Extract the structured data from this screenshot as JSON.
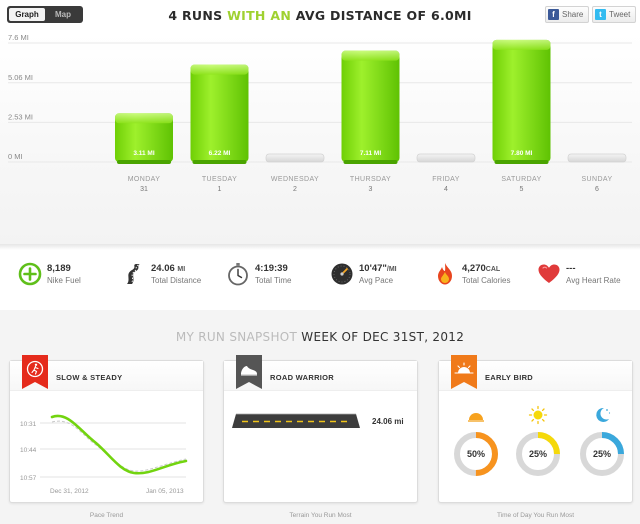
{
  "header": {
    "toggle": {
      "graph": "Graph",
      "map": "Map"
    },
    "headline": {
      "p1": "4 RUNS ",
      "p2": "WITH AN ",
      "p3": "AVG DISTANCE OF 6.0MI"
    },
    "share": {
      "facebook": "Share",
      "twitter": "Tweet"
    }
  },
  "chart_data": {
    "type": "bar",
    "categories": [
      "MONDAY",
      "TUESDAY",
      "WEDNESDAY",
      "THURSDAY",
      "FRIDAY",
      "SATURDAY",
      "SUNDAY"
    ],
    "dates": [
      "31",
      "1",
      "2",
      "3",
      "4",
      "5",
      "6"
    ],
    "values": [
      3.11,
      6.22,
      0,
      7.11,
      0,
      7.8,
      0
    ],
    "value_labels": [
      "3.11 MI",
      "6.22 MI",
      "",
      "7.11 MI",
      "",
      "7.80 MI",
      ""
    ],
    "yticks": [
      0,
      2.53,
      5.06,
      7.6
    ],
    "ytick_labels": [
      "0 MI",
      "2.53 MI",
      "5.06 MI",
      "7.6 MI"
    ],
    "ylim": [
      0,
      7.6
    ],
    "colors": {
      "bar": "#7bd80a",
      "bar_light": "#a9f13b",
      "empty": "#e4e4e4"
    }
  },
  "stats": [
    {
      "value": "8,189",
      "unit": "",
      "label": "Nike Fuel",
      "icon": "fuel-icon"
    },
    {
      "value": "24.06",
      "unit": "MI",
      "label": "Total Distance",
      "icon": "road-icon"
    },
    {
      "value": "4:19:39",
      "unit": "",
      "label": "Total Time",
      "icon": "stopwatch-icon"
    },
    {
      "value": "10'47\"",
      "unit": "/MI",
      "label": "Avg Pace",
      "icon": "speedometer-icon"
    },
    {
      "value": "4,270",
      "unit": "CAL",
      "label": "Total Calories",
      "icon": "flame-icon"
    },
    {
      "value": "---",
      "unit": "",
      "label": "Avg Heart Rate",
      "icon": "heart-icon"
    }
  ],
  "snapshot": {
    "light": "MY RUN SNAPSHOT ",
    "dark": "WEEK OF DEC 31ST, 2012"
  },
  "cards": {
    "slow": {
      "title": "SLOW & STEADY",
      "footer": "Pace Trend",
      "chart_data": {
        "type": "line",
        "yticks": [
          "10:31",
          "10:44",
          "10:57"
        ],
        "xlabels": [
          "Dec 31, 2012",
          "Jan 05, 2013"
        ]
      }
    },
    "road": {
      "title": "ROAD WARRIOR",
      "value": "24.06 mi",
      "footer": "Terrain You Run Most"
    },
    "bird": {
      "title": "EARLY BIRD",
      "footer": "Time of Day You Run Most",
      "donuts": [
        {
          "label": "50%",
          "value": 0.5,
          "color": "#f7931e",
          "icon": "sunrise-icon"
        },
        {
          "label": "25%",
          "value": 0.25,
          "color": "#f5d90a",
          "icon": "sun-icon"
        },
        {
          "label": "25%",
          "value": 0.25,
          "color": "#3aa8dc",
          "icon": "moon-icon"
        }
      ]
    }
  }
}
